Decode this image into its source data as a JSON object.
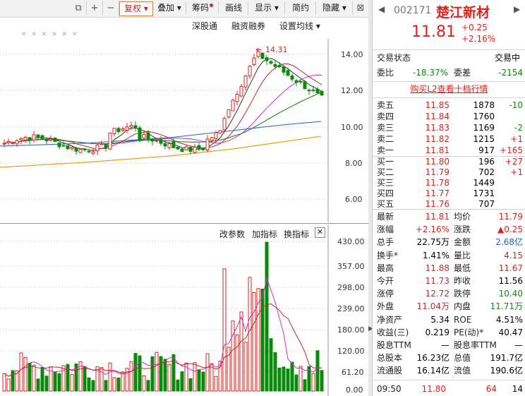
{
  "toolbar": {
    "buttons": [
      "复权",
      "叠加",
      "筹码",
      "画线",
      "显示",
      "简约",
      "隐藏"
    ],
    "icons": [
      "restore-icon",
      "plus-icon",
      "minus-icon"
    ],
    "close_glyph": "⊠"
  },
  "upper_header": {
    "items": [
      "深股通",
      "融资融券",
      "设置均线"
    ],
    "dash_row": "✕ ✕ ✕ ✕ ✕ ✕"
  },
  "upper_axis": [
    "14.00",
    "12.00",
    "10.00",
    "8.00",
    "6.00"
  ],
  "peak_label": "14.31",
  "lower_header": {
    "items": [
      "改参数",
      "加指标",
      "换指标"
    ]
  },
  "lower_axis": [
    "430.00",
    "357.00",
    "298.00",
    "239.00",
    "180.00",
    "120.00",
    "61.20",
    "0.00"
  ],
  "stock": {
    "code": "002171",
    "name": "楚江新材",
    "price": "11.81",
    "change": "+0.25",
    "change_pct": "+2.16%"
  },
  "status": {
    "label": "交易状态",
    "value": "交易中"
  },
  "weibi": {
    "label": "委比",
    "value": "-18.37%",
    "label2": "委差",
    "value2": "-2154"
  },
  "l2_link": "购买L2查看十档行情",
  "asks": [
    {
      "label": "卖五",
      "price": "11.85",
      "vol": "1878",
      "chg": "-10"
    },
    {
      "label": "卖四",
      "price": "11.84",
      "vol": "1760",
      "chg": ""
    },
    {
      "label": "卖三",
      "price": "11.83",
      "vol": "1169",
      "chg": "-2"
    },
    {
      "label": "卖二",
      "price": "11.82",
      "vol": "1215",
      "chg": "+1"
    },
    {
      "label": "卖一",
      "price": "11.81",
      "vol": "917",
      "chg": "+165"
    }
  ],
  "bids": [
    {
      "label": "买一",
      "price": "11.80",
      "vol": "196",
      "chg": "+27"
    },
    {
      "label": "买二",
      "price": "11.79",
      "vol": "702",
      "chg": "+1"
    },
    {
      "label": "买三",
      "price": "11.78",
      "vol": "1449",
      "chg": ""
    },
    {
      "label": "买四",
      "price": "11.77",
      "vol": "1731",
      "chg": ""
    },
    {
      "label": "买五",
      "price": "11.76",
      "vol": "707",
      "chg": ""
    }
  ],
  "stats": [
    {
      "l1": "最新",
      "v1": "11.81",
      "c1": "red",
      "l2": "均价",
      "v2": "11.79",
      "c2": "red"
    },
    {
      "l1": "涨幅",
      "v1": "+2.16%",
      "c1": "red",
      "l2": "涨跌",
      "v2": "▲0.25",
      "c2": "red"
    },
    {
      "l1": "总手",
      "v1": "22.75万",
      "c1": "",
      "l2": "金额",
      "v2": "2.68亿",
      "c2": "blue"
    },
    {
      "l1": "换手*",
      "v1": "1.41%",
      "c1": "",
      "l2": "量比",
      "v2": "4.15",
      "c2": "red"
    },
    {
      "l1": "最高",
      "v1": "11.88",
      "c1": "red",
      "l2": "最低",
      "v2": "11.67",
      "c2": "red"
    },
    {
      "l1": "今开",
      "v1": "11.73",
      "c1": "red",
      "l2": "昨收",
      "v2": "11.56",
      "c2": ""
    },
    {
      "l1": "涨停",
      "v1": "12.72",
      "c1": "red",
      "l2": "跌停",
      "v2": "10.40",
      "c2": "green"
    },
    {
      "l1": "外盘",
      "v1": "11.04万",
      "c1": "red",
      "l2": "内盘",
      "v2": "11.71万",
      "c2": "green"
    },
    {
      "l1": "净资产",
      "v1": "5.34",
      "c1": "",
      "l2": "ROE",
      "v2": "4.51%",
      "c2": ""
    },
    {
      "l1": "收益(三)",
      "v1": "0.219",
      "c1": "",
      "l2": "PE(动)*",
      "v2": "40.47",
      "c2": ""
    },
    {
      "l1": "股息TTM",
      "v1": "—",
      "c1": "",
      "l2": "股息率TTM",
      "v2": "—",
      "c2": ""
    },
    {
      "l1": "总股本",
      "v1": "16.23亿",
      "c1": "",
      "l2": "总值",
      "v2": "191.7亿",
      "c2": ""
    },
    {
      "l1": "流通股",
      "v1": "16.14亿",
      "c1": "",
      "l2": "流值",
      "v2": "190.6亿",
      "c2": ""
    }
  ],
  "tick": {
    "time": "09:50",
    "price": "11.80",
    "vol": "64",
    "count": "14"
  },
  "colors": {
    "up": "#e0201b",
    "down": "#0a8a0a",
    "ma5": "#333333",
    "ma10": "#c0282d",
    "ma20": "#d22dc8",
    "ma30": "#0a7a0a",
    "ma60": "#1f5fbf",
    "ma120": "#e8a11c"
  }
}
